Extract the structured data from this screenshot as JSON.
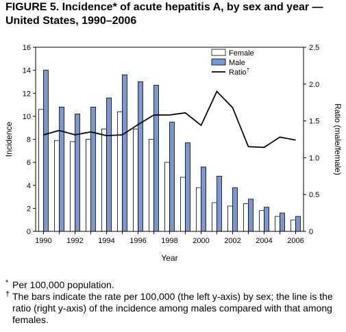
{
  "title": "FIGURE 5. Incidence* of acute hepatitis A, by sex and year — United States, 1990–2006",
  "chart_data": {
    "type": "bar",
    "categories": [
      "1990",
      "1991",
      "1992",
      "1993",
      "1994",
      "1995",
      "1996",
      "1997",
      "1998",
      "1999",
      "2000",
      "2001",
      "2002",
      "2003",
      "2004",
      "2005",
      "2006"
    ],
    "x_tick_labels": [
      "1990",
      "1992",
      "1994",
      "1996",
      "1998",
      "2000",
      "2002",
      "2004",
      "2006"
    ],
    "series": [
      {
        "name": "Female",
        "type": "bar",
        "color": "#ffffff",
        "values": [
          10.6,
          7.9,
          7.8,
          8.0,
          8.9,
          10.4,
          8.9,
          8.0,
          6.0,
          4.7,
          3.8,
          2.5,
          2.2,
          2.4,
          1.8,
          1.3,
          1.0
        ]
      },
      {
        "name": "Male",
        "type": "bar",
        "color": "#7a97cf",
        "values": [
          14.0,
          10.8,
          10.2,
          10.8,
          11.6,
          13.6,
          13.0,
          12.7,
          9.5,
          7.7,
          5.6,
          4.8,
          3.8,
          2.8,
          2.1,
          1.6,
          1.3
        ]
      },
      {
        "name": "Ratio",
        "type": "line",
        "axis": "right",
        "color": "#000000",
        "values": [
          1.31,
          1.37,
          1.31,
          1.35,
          1.3,
          1.31,
          1.45,
          1.58,
          1.58,
          1.61,
          1.44,
          1.9,
          1.68,
          1.15,
          1.14,
          1.28,
          1.24
        ]
      }
    ],
    "legend": [
      {
        "label": "Female",
        "sup": ""
      },
      {
        "label": "Male",
        "sup": ""
      },
      {
        "label": "Ratio",
        "sup": "†"
      }
    ],
    "xlabel": "Year",
    "ylabel": "Incidence",
    "y2label": "Ratio (male/female)",
    "ylim": [
      0,
      16
    ],
    "y_ticks": [
      "0",
      "2",
      "4",
      "6",
      "8",
      "10",
      "12",
      "14",
      "16"
    ],
    "y2lim": [
      0,
      2.5
    ],
    "y2_ticks": [
      "0",
      "0.5",
      "1.0",
      "1.5",
      "2.0",
      "2.5"
    ],
    "grid": false,
    "legend_position": "top-right"
  },
  "footnotes": [
    {
      "mark": "*",
      "text": "Per 100,000 population."
    },
    {
      "mark": "†",
      "text": "The bars indicate the rate per 100,000 (the left y-axis) by sex; the line is the ratio (right y-axis) of the incidence among males compared with that among females."
    }
  ]
}
